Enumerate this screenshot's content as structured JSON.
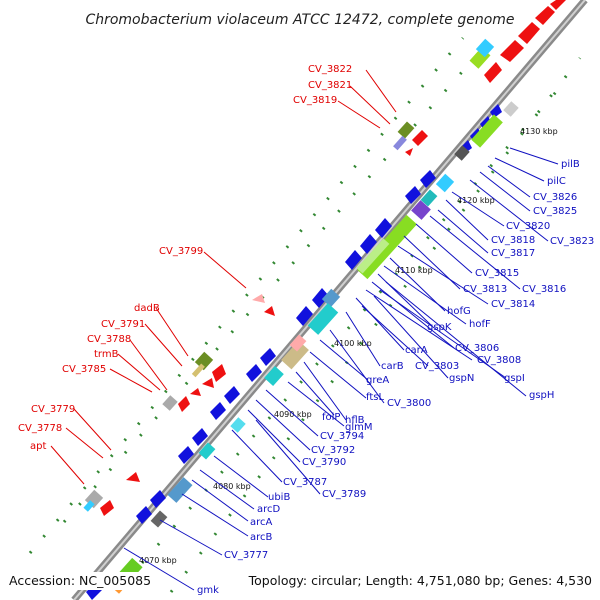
{
  "title": "Chromobacterium violaceum ATCC 12472, complete genome",
  "accession": "Accession: NC_005085",
  "summary": "Topology: circular; Length: 4,751,080 bp; Genes: 4,530",
  "ticks": [
    "4070 kbp",
    "4080 kbp",
    "4090 kbp",
    "4100 kbp",
    "4110 kbp",
    "4120 kbp",
    "4130 kbp"
  ],
  "red_labels": [
    "CV_3822",
    "CV_3821",
    "CV_3819",
    "CV_3799",
    "dadB",
    "CV_3791",
    "CV_3788",
    "trmB",
    "CV_3785",
    "CV_3779",
    "CV_3778",
    "apt"
  ],
  "blue_labels": [
    "pilB",
    "pilC",
    "CV_3826",
    "CV_3825",
    "CV_3820",
    "CV_3823",
    "CV_3818",
    "CV_3817",
    "CV_3815",
    "CV_3816",
    "CV_3813",
    "CV_3814",
    "hofG",
    "hofF",
    "gspK",
    "CV_3806",
    "CV_3808",
    "carA",
    "carB",
    "CV_3803",
    "gspN",
    "gspI",
    "gspH",
    "greA",
    "ftsL",
    "CV_3800",
    "hflB",
    "folP",
    "glmM",
    "CV_3794",
    "CV_3792",
    "CV_3790",
    "CV_3787",
    "CV_3789",
    "ubiB",
    "arcD",
    "arcA",
    "arcB",
    "CV_3777",
    "gmk"
  ],
  "colors": {
    "backbone": "#888888",
    "red_gene": "#ee1111",
    "blue_gene": "#1111dd",
    "red_label": "#e00000",
    "blue_label": "#1010c0",
    "dots": "#338833"
  }
}
